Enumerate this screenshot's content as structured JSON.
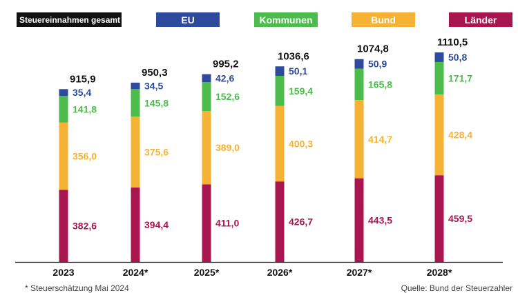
{
  "legend": {
    "total": "Steuereinnahmen gesamt",
    "eu": "EU",
    "kommunen": "Kommunen",
    "bund": "Bund",
    "laender": "Länder"
  },
  "colors": {
    "eu": "#2d4a9c",
    "kommunen": "#4cbd4c",
    "bund": "#f5b235",
    "laender": "#a8154f",
    "total": "#111111"
  },
  "chart_data": {
    "type": "bar",
    "stacked": true,
    "categories": [
      "2023",
      "2024*",
      "2025*",
      "2026*",
      "2027*",
      "2028*"
    ],
    "series": [
      {
        "name": "Länder",
        "key": "laender",
        "values": [
          382.6,
          394.4,
          411.0,
          426.7,
          443.5,
          459.5
        ],
        "labels": [
          "382,6",
          "394,4",
          "411,0",
          "426,7",
          "443,5",
          "459,5"
        ]
      },
      {
        "name": "Bund",
        "key": "bund",
        "values": [
          356.0,
          375.6,
          389.0,
          400.3,
          414.7,
          428.4
        ],
        "labels": [
          "356,0",
          "375,6",
          "389,0",
          "400,3",
          "414,7",
          "428,4"
        ]
      },
      {
        "name": "Kommunen",
        "key": "kommunen",
        "values": [
          141.8,
          145.8,
          152.6,
          159.4,
          165.8,
          171.7
        ],
        "labels": [
          "141,8",
          "145,8",
          "152,6",
          "159,4",
          "165,8",
          "171,7"
        ]
      },
      {
        "name": "EU",
        "key": "eu",
        "values": [
          35.4,
          34.5,
          42.6,
          50.1,
          50.9,
          50.8
        ],
        "labels": [
          "35,4",
          "34,5",
          "42,6",
          "50,1",
          "50,9",
          "50,8"
        ]
      }
    ],
    "totals": [
      915.9,
      950.3,
      995.2,
      1036.6,
      1074.8,
      1110.5
    ],
    "total_labels": [
      "915,9",
      "950,3",
      "995,2",
      "1036,6",
      "1074,8",
      "1110,5"
    ],
    "ylim": [
      0,
      1110.5
    ]
  },
  "footer": {
    "note": "* Steuerschätzung Mai 2024",
    "source": "Quelle: Bund der Steuerzahler"
  }
}
